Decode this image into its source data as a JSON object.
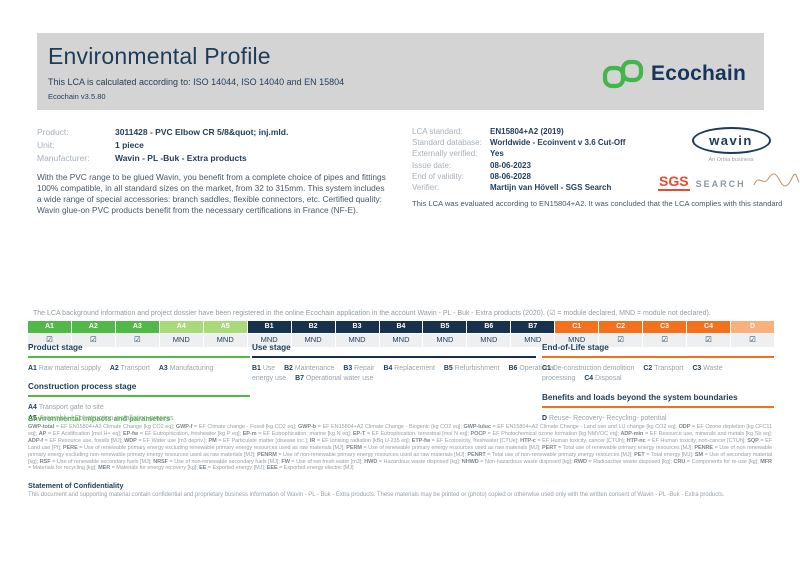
{
  "header": {
    "title": "Environmental Profile",
    "subtitle": "This LCA is calculated according to: ISO 14044, ISO 14040 and EN 15804",
    "version": "Ecochain v3.5.80",
    "logo_text": "Ecochain",
    "logo_green": "#41b649",
    "header_bg": "#d4d4d4"
  },
  "product_info": {
    "rows": [
      {
        "label": "Product:",
        "value": "3011428 - PVC Elbow CR 5/8&quot; inj.mld."
      },
      {
        "label": "Unit:",
        "value": "1 piece"
      },
      {
        "label": "Manufacturer:",
        "value": "Wavin - PL -Buk - Extra products"
      }
    ],
    "description": "With the PVC range to be glued Wavin, you benefit from a complete choice of pipes and fittings 100% compatible, in all standard sizes on the market, from 32 to 315mm. This system includes a wide range of special accessories: branch saddles, flexible connectors, etc. Certified quality: Wavin glue-on PVC products benefit from the necessary certifications in France (NF-E)."
  },
  "lca_info": {
    "rows": [
      {
        "label": "LCA standard:",
        "value": "EN15804+A2 (2019)"
      },
      {
        "label": "Standard database:",
        "value": "Worldwide - Ecoinvent v 3.6 Cut-Off"
      },
      {
        "label": "Externally verified:",
        "value": "Yes"
      },
      {
        "label": "Issue date:",
        "value": "08-06-2023"
      },
      {
        "label": "End of validity:",
        "value": "08-06-2028"
      },
      {
        "label": "Verifier:",
        "value": "Martijn van Hövell - SGS Search"
      }
    ],
    "evaluation_note": "This LCA was evaluated according to EN15804+A2. It was concluded that the LCA complies with this standard"
  },
  "logos": {
    "wavin_text": "wavin",
    "wavin_subtext": "An Orbia business",
    "sgs_text": "SGS",
    "search_text": "SEARCH"
  },
  "registration_note": "The LCA background information and project dossier have been registered in the online Ecochain application in the account Wavin - PL - Buk - Extra products (2020). (☑ = module declared, MND = module not declared).",
  "modules_table": {
    "colors": {
      "product": "#52b848",
      "construction": "#a8da7a",
      "use": "#16324d",
      "eol": "#f3701d",
      "benefits": "#f8b07c"
    },
    "cells": [
      {
        "code": "A1",
        "group": "product",
        "status": "☑"
      },
      {
        "code": "A2",
        "group": "product",
        "status": "☑"
      },
      {
        "code": "A3",
        "group": "product",
        "status": "☑"
      },
      {
        "code": "A4",
        "group": "construction",
        "status": "MND"
      },
      {
        "code": "A5",
        "group": "construction",
        "status": "MND"
      },
      {
        "code": "B1",
        "group": "use",
        "status": "MND"
      },
      {
        "code": "B2",
        "group": "use",
        "status": "MND"
      },
      {
        "code": "B3",
        "group": "use",
        "status": "MND"
      },
      {
        "code": "B4",
        "group": "use",
        "status": "MND"
      },
      {
        "code": "B5",
        "group": "use",
        "status": "MND"
      },
      {
        "code": "B6",
        "group": "use",
        "status": "MND"
      },
      {
        "code": "B7",
        "group": "use",
        "status": "MND"
      },
      {
        "code": "C1",
        "group": "eol",
        "status": "MND"
      },
      {
        "code": "C2",
        "group": "eol",
        "status": "☑"
      },
      {
        "code": "C3",
        "group": "eol",
        "status": "☑"
      },
      {
        "code": "C4",
        "group": "eol",
        "status": "☑"
      },
      {
        "code": "D",
        "group": "benefits",
        "status": "☑"
      }
    ]
  },
  "stages": {
    "columns": [
      {
        "blocks": [
          {
            "title": "Product stage",
            "rule": "#52b848",
            "block": false,
            "items": [
              {
                "code": "A1",
                "label": "Raw material supply"
              },
              {
                "code": "A2",
                "label": "Transport"
              },
              {
                "code": "A3",
                "label": "Manufacturing"
              }
            ]
          },
          {
            "title": "Construction process stage",
            "rule": "#52b848",
            "block": true,
            "items": [
              {
                "code": "A4",
                "label": "Transport gate to site"
              },
              {
                "code": "A5",
                "label": "Assembly / Construction installation process"
              }
            ]
          }
        ]
      },
      {
        "blocks": [
          {
            "title": "Use stage",
            "rule": "#16324d",
            "block": false,
            "items": [
              {
                "code": "B1",
                "label": "Use"
              },
              {
                "code": "B2",
                "label": "Maintenance"
              },
              {
                "code": "B3",
                "label": "Repair"
              },
              {
                "code": "B4",
                "label": "Replacement"
              },
              {
                "code": "B5",
                "label": "Refurbishment"
              },
              {
                "code": "B6",
                "label": "Operational energy use"
              },
              {
                "code": "B7",
                "label": "Operational water use"
              }
            ]
          }
        ]
      },
      {
        "blocks": [
          {
            "title": "End-of-Life stage",
            "rule": "#f3701d",
            "block": false,
            "items": [
              {
                "code": "C1",
                "label": "De-construction demolition"
              },
              {
                "code": "C2",
                "label": "Transport"
              },
              {
                "code": "C3",
                "label": "Waste processing"
              },
              {
                "code": "C4",
                "label": "Disposal"
              }
            ]
          },
          {
            "title": "Benefits and loads beyond the system boundaries",
            "rule": "#f3701d",
            "block": false,
            "items": [
              {
                "code": "D",
                "label": "Reuse- Recovery- Recycling- potential"
              }
            ]
          }
        ]
      }
    ]
  },
  "environmental": {
    "heading": "Environmental impacts and parameters",
    "entries": [
      {
        "k": "GWP-total",
        "v": "EF EN15804+A2 Climate Change [kg CO2 eq]"
      },
      {
        "k": "GWP-f",
        "v": "EF Climate change - Fossil [kg CO2 eq]"
      },
      {
        "k": "GWP-b",
        "v": "EF EN15804+A2 Climate Change - Biogenic [kg CO2 eq]"
      },
      {
        "k": "GWP-luluc",
        "v": "EF EN15804+A2 Climate Change - Land use and LU change [kg CO2 eq]"
      },
      {
        "k": "ODP",
        "v": "EF Ozone depletion [kg CFC11 eq]"
      },
      {
        "k": "AP",
        "v": "EF Acidification [mol H+ eq]"
      },
      {
        "k": "EP-fw",
        "v": "EF Eutrophication, freshwater [kg P eq]"
      },
      {
        "k": "EP-m",
        "v": "EF Eutrophication, marine [kg N eq]"
      },
      {
        "k": "EP-T",
        "v": "EF Eutrophication, terrestrial [mol N eq]"
      },
      {
        "k": "POCP",
        "v": "EF Photochemical ozone formation [kg NMVOC eq]"
      },
      {
        "k": "ADP-min",
        "v": "EF Resource use, minerals and metals [kg Sb eq]"
      },
      {
        "k": "ADP-f",
        "v": "EF Resource use, fossils [MJ]"
      },
      {
        "k": "WDP",
        "v": "EF Water use [m3 depriv.]"
      },
      {
        "k": "PM",
        "v": "EF Particulate matter [disease inc.]"
      },
      {
        "k": "IR",
        "v": "EF Ionising radiation [kBq U-235 eq]"
      },
      {
        "k": "ETP-fw",
        "v": "EF Ecotoxicity, freshwater [CTUe]"
      },
      {
        "k": "HTP-c",
        "v": "EF Human toxicity, cancer [CTUh]"
      },
      {
        "k": "HTP-nc",
        "v": "EF Human toxicity, non-cancer [CTUh]"
      },
      {
        "k": "SQP",
        "v": "EF Land use [Pt]"
      },
      {
        "k": "PERE",
        "v": "Use of renewable primary energy excluding renewable primary energy resources used as raw materials [MJ]"
      },
      {
        "k": "PERM",
        "v": "Use of renewable primary energy resources used as raw materials [MJ]"
      },
      {
        "k": "PERT",
        "v": "Total use of renewable primary energy resources [MJ]"
      },
      {
        "k": "PENRE",
        "v": "Use of non renewable primary energy excluding non-renewable primary energy resources used as raw materials [MJ]"
      },
      {
        "k": "PENRM",
        "v": "Use of non-renewable primary energy resources used as raw materials [MJ]"
      },
      {
        "k": "PENRT",
        "v": "Total use of non-renewable primary energy resources [MJ]"
      },
      {
        "k": "PET",
        "v": "Total energy [MJ]"
      },
      {
        "k": "SM",
        "v": "Use of secondary material [kg]"
      },
      {
        "k": "RSF",
        "v": "Use of renewable secondary fuels [MJ]"
      },
      {
        "k": "NRSF",
        "v": "Use of non-renewable secondary fuels [MJ]"
      },
      {
        "k": "FW",
        "v": "Use of net fresh water [m3]"
      },
      {
        "k": "HWD",
        "v": "Hazardous waste disposed [kg]"
      },
      {
        "k": "NHWD",
        "v": "Non-hazardous waste disposed [kg]"
      },
      {
        "k": "RWD",
        "v": "Radioactive waste disposed [kg]"
      },
      {
        "k": "CRU",
        "v": "Components for re-use [kg]"
      },
      {
        "k": "MFR",
        "v": "Materials for recycling [kg]"
      },
      {
        "k": "MER",
        "v": "Materials for energy recovery [kg]"
      },
      {
        "k": "EE",
        "v": "Exported energy [MJ]"
      },
      {
        "k": "EEE",
        "v": "Exported energy electric [MJ]"
      }
    ]
  },
  "confidentiality": {
    "heading": "Statement of Confidentiality",
    "text": "This document and supporting material contain confidential and proprietary business information of Wavin - PL - Buk - Extra products. These materials may be printed or (photo) copied or otherwise used only with the written consent of Wavin - PL -Buk - Extra products."
  }
}
